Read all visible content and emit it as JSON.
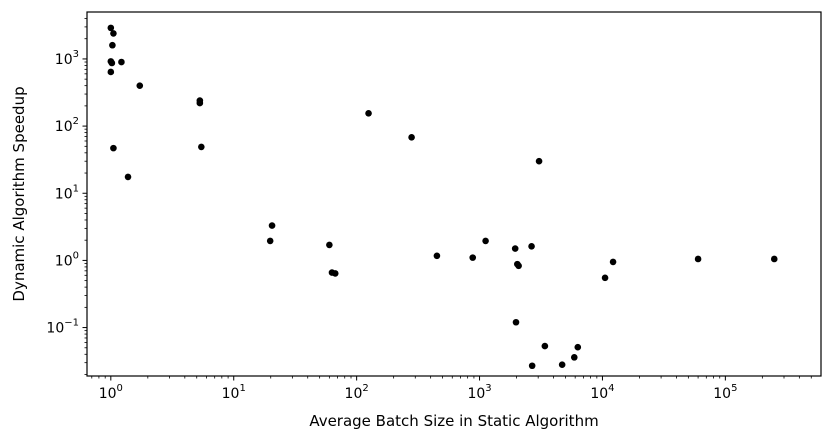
{
  "chart_data": {
    "type": "scatter",
    "title": "",
    "xlabel": "Average Batch Size in Static Algorithm",
    "ylabel": "Dynamic Algorithm Speedup",
    "xscale": "log",
    "yscale": "log",
    "xlim": [
      0.64,
      600000
    ],
    "ylim": [
      0.019,
      5000
    ],
    "grid": false,
    "legend": "none",
    "marker_color": "#000000",
    "x_ticks": [
      {
        "value": 1,
        "base": "10",
        "exp": "0"
      },
      {
        "value": 10,
        "base": "10",
        "exp": "1"
      },
      {
        "value": 100,
        "base": "10",
        "exp": "2"
      },
      {
        "value": 1000,
        "base": "10",
        "exp": "3"
      },
      {
        "value": 10000,
        "base": "10",
        "exp": "4"
      },
      {
        "value": 100000,
        "base": "10",
        "exp": "5"
      }
    ],
    "y_ticks": [
      {
        "value": 0.1,
        "base": "10",
        "exp": "−1"
      },
      {
        "value": 1,
        "base": "10",
        "exp": "0"
      },
      {
        "value": 10,
        "base": "10",
        "exp": "1"
      },
      {
        "value": 100,
        "base": "10",
        "exp": "2"
      },
      {
        "value": 1000,
        "base": "10",
        "exp": "3"
      }
    ],
    "points": [
      {
        "x": 1.0,
        "y": 2900
      },
      {
        "x": 1.05,
        "y": 2400
      },
      {
        "x": 1.03,
        "y": 1600
      },
      {
        "x": 1.0,
        "y": 920
      },
      {
        "x": 1.02,
        "y": 870
      },
      {
        "x": 1.22,
        "y": 900
      },
      {
        "x": 1.0,
        "y": 640
      },
      {
        "x": 1.72,
        "y": 400
      },
      {
        "x": 1.05,
        "y": 47
      },
      {
        "x": 1.38,
        "y": 17.5
      },
      {
        "x": 5.3,
        "y": 240
      },
      {
        "x": 5.3,
        "y": 220
      },
      {
        "x": 5.45,
        "y": 49
      },
      {
        "x": 20.5,
        "y": 3.3
      },
      {
        "x": 19.8,
        "y": 1.95
      },
      {
        "x": 60,
        "y": 1.7
      },
      {
        "x": 63,
        "y": 0.66
      },
      {
        "x": 67,
        "y": 0.64
      },
      {
        "x": 125,
        "y": 155
      },
      {
        "x": 280,
        "y": 68
      },
      {
        "x": 450,
        "y": 1.17
      },
      {
        "x": 880,
        "y": 1.1
      },
      {
        "x": 1120,
        "y": 1.95
      },
      {
        "x": 1950,
        "y": 1.5
      },
      {
        "x": 2030,
        "y": 0.88
      },
      {
        "x": 2080,
        "y": 0.83
      },
      {
        "x": 2650,
        "y": 1.62
      },
      {
        "x": 3050,
        "y": 30
      },
      {
        "x": 1980,
        "y": 0.12
      },
      {
        "x": 3400,
        "y": 0.053
      },
      {
        "x": 2680,
        "y": 0.027
      },
      {
        "x": 4700,
        "y": 0.028
      },
      {
        "x": 5900,
        "y": 0.036
      },
      {
        "x": 6300,
        "y": 0.051
      },
      {
        "x": 10500,
        "y": 0.55
      },
      {
        "x": 12200,
        "y": 0.95
      },
      {
        "x": 60000,
        "y": 1.05
      },
      {
        "x": 250000,
        "y": 1.05
      }
    ]
  }
}
